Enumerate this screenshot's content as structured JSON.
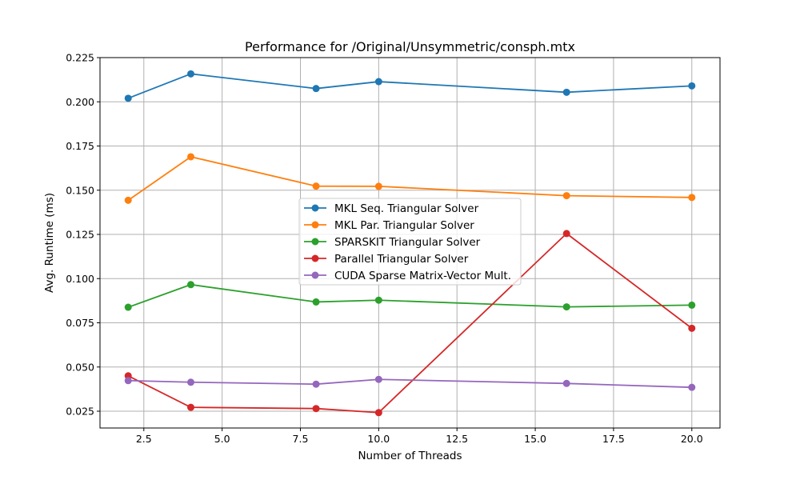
{
  "chart_data": {
    "type": "line",
    "title": "Performance for /Original/Unsymmetric/consph.mtx",
    "xlabel": "Number of Threads",
    "ylabel": "Avg. Runtime (ms)",
    "xlim": [
      1.1,
      20.9
    ],
    "ylim": [
      0.0155,
      0.225
    ],
    "xticks": [
      2.5,
      5.0,
      7.5,
      10.0,
      12.5,
      15.0,
      17.5,
      20.0
    ],
    "xtick_labels": [
      "2.5",
      "5.0",
      "7.5",
      "10.0",
      "12.5",
      "15.0",
      "17.5",
      "20.0"
    ],
    "yticks": [
      0.025,
      0.05,
      0.075,
      0.1,
      0.125,
      0.15,
      0.175,
      0.2,
      0.225
    ],
    "ytick_labels": [
      "0.025",
      "0.050",
      "0.075",
      "0.100",
      "0.125",
      "0.150",
      "0.175",
      "0.200",
      "0.225"
    ],
    "grid": true,
    "legend_position": "center",
    "x": [
      2,
      4,
      8,
      10,
      16,
      20
    ],
    "series": [
      {
        "name": "MKL Seq. Triangular Solver",
        "color": "#1f77b4",
        "values": [
          0.202,
          0.2158,
          0.2075,
          0.2114,
          0.2054,
          0.209
        ]
      },
      {
        "name": "MKL Par. Triangular Solver",
        "color": "#ff7f0e",
        "values": [
          0.1443,
          0.1689,
          0.1523,
          0.1522,
          0.1469,
          0.1459
        ]
      },
      {
        "name": "SPARSKIT Triangular Solver",
        "color": "#2ca02c",
        "values": [
          0.0838,
          0.0966,
          0.0868,
          0.0878,
          0.084,
          0.085
        ]
      },
      {
        "name": "Parallel Triangular Solver",
        "color": "#d62728",
        "values": [
          0.045,
          0.0272,
          0.0265,
          0.0242,
          0.1255,
          0.0719
        ]
      },
      {
        "name": "CUDA Sparse Matrix-Vector Mult.",
        "color": "#9467bd",
        "values": [
          0.0423,
          0.0414,
          0.0403,
          0.043,
          0.0407,
          0.0385
        ]
      }
    ]
  }
}
